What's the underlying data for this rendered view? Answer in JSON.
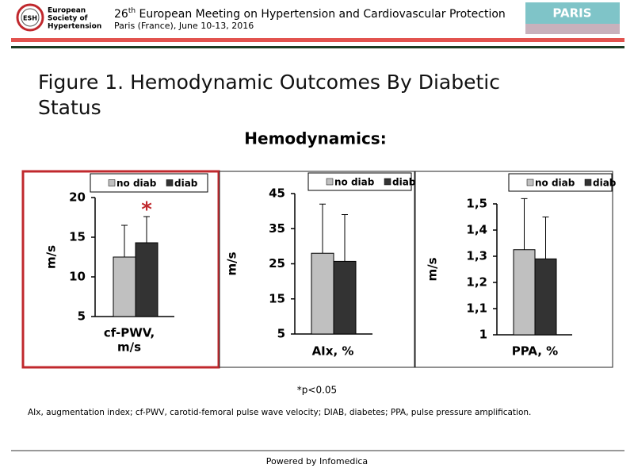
{
  "header": {
    "logo_abbr": "ESH",
    "logo_text": [
      "European",
      "Society of",
      "Hypertension"
    ],
    "meeting_number": "26",
    "meeting_suffix": "th",
    "meeting_title": " European Meeting on Hypertension and Cardiovascular Protection",
    "meeting_place": "Paris (France), June 10-13, 2016",
    "badge": "PARIS"
  },
  "figure_title": "Figure 1. Hemodynamic Outcomes By Diabetic Status",
  "section_title": "Hemodynamics:",
  "significance_note": "*p<0.05",
  "abbreviations": "AIx, augmentation index; cf-PWV, carotid-femoral pulse wave velocity; DIAB, diabetes; PPA, pulse pressure amplification.",
  "footer": "Powered by Infomedica",
  "chart_data": [
    {
      "type": "bar",
      "xlabel": [
        "cf-PWV,",
        "m/s"
      ],
      "ylabel": "m/s",
      "annotation": "*",
      "highlight_color": "#c0282d",
      "ylim": [
        5,
        20
      ],
      "yticks": [
        5,
        10,
        15,
        20
      ],
      "series": [
        {
          "name": "no diab",
          "color": "#c0c0c0",
          "values": [
            12.5
          ],
          "errors": [
            4
          ]
        },
        {
          "name": "diab",
          "color": "#333333",
          "values": [
            14.3
          ],
          "errors": [
            3.3
          ]
        }
      ]
    },
    {
      "type": "bar",
      "xlabel": [
        "AIx, %"
      ],
      "ylabel": "m/s",
      "ylim": [
        5,
        45
      ],
      "yticks": [
        5,
        15,
        25,
        35,
        45
      ],
      "series": [
        {
          "name": "no diab",
          "color": "#c0c0c0",
          "values": [
            28
          ],
          "errors": [
            14
          ]
        },
        {
          "name": "diab",
          "color": "#333333",
          "values": [
            25.7
          ],
          "errors": [
            13.3
          ]
        }
      ]
    },
    {
      "type": "bar",
      "xlabel": [
        "PPA, %"
      ],
      "ylabel": "m/s",
      "ylim": [
        1,
        1.5
      ],
      "yticks": [
        1,
        {
          "value": 1.1,
          "label": "1,1"
        },
        {
          "value": 1.2,
          "label": "1,2"
        },
        {
          "value": 1.3,
          "label": "1,3"
        },
        {
          "value": 1.4,
          "label": "1,4"
        },
        {
          "value": 1.5,
          "label": "1,5"
        }
      ],
      "series": [
        {
          "name": "no diab",
          "color": "#c0c0c0",
          "values": [
            1.325
          ],
          "errors": [
            0.195
          ]
        },
        {
          "name": "diab",
          "color": "#333333",
          "values": [
            1.29
          ],
          "errors": [
            0.16
          ]
        }
      ]
    }
  ]
}
